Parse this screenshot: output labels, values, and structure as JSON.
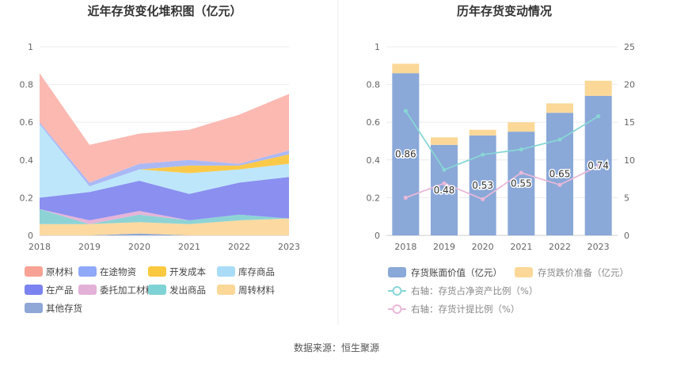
{
  "footer": {
    "source": "数据来源：恒生聚源"
  },
  "chart_data": [
    {
      "type": "area",
      "title": "近年存货变化堆积图（亿元）",
      "x": [
        "2018",
        "2019",
        "2020",
        "2021",
        "2022",
        "2023"
      ],
      "y_ticks": [
        "0",
        "0.2",
        "0.4",
        "0.6",
        "0.8",
        "1"
      ],
      "ylim": [
        0,
        1
      ],
      "grid": true,
      "legend_position": "bottom",
      "series": [
        {
          "name": "其他存货",
          "color": "#8da6d8",
          "values": [
            0,
            0,
            0.01,
            0,
            0,
            0
          ]
        },
        {
          "name": "周转材料",
          "color": "#fbd9a0",
          "values": [
            0.06,
            0.06,
            0.06,
            0.06,
            0.08,
            0.09
          ]
        },
        {
          "name": "发出商品",
          "color": "#8dd3d6",
          "values": [
            0.08,
            0,
            0.04,
            0.02,
            0.03,
            0
          ]
        },
        {
          "name": "委托加工材料",
          "color": "#e6b4d8",
          "values": [
            0,
            0.02,
            0.02,
            0,
            0,
            0
          ]
        },
        {
          "name": "在产品",
          "color": "#8a8ff0",
          "values": [
            0.06,
            0.15,
            0.16,
            0.14,
            0.17,
            0.22
          ]
        },
        {
          "name": "库存商品",
          "color": "#bde6fb",
          "values": [
            0.39,
            0.03,
            0.06,
            0.11,
            0.07,
            0.07
          ]
        },
        {
          "name": "开发成本",
          "color": "#fbc94a",
          "values": [
            0,
            0,
            0,
            0.04,
            0.02,
            0.05
          ]
        },
        {
          "name": "在途物资",
          "color": "#aab9f5",
          "values": [
            0.01,
            0.02,
            0.03,
            0.03,
            0.01,
            0.02
          ]
        },
        {
          "name": "原材料",
          "color": "#fbb9b2",
          "values": [
            0.26,
            0.2,
            0.16,
            0.16,
            0.26,
            0.3
          ]
        }
      ],
      "legend": [
        {
          "name": "原材料",
          "color": "#f7a294"
        },
        {
          "name": "在途物资",
          "color": "#8fa8f7"
        },
        {
          "name": "开发成本",
          "color": "#fbc93f"
        },
        {
          "name": "库存商品",
          "color": "#a9dcf7"
        },
        {
          "name": "在产品",
          "color": "#7b83f0"
        },
        {
          "name": "委托加工材料",
          "color": "#e3b1d8"
        },
        {
          "name": "发出商品",
          "color": "#80d3d4"
        },
        {
          "name": "周转材料",
          "color": "#fbd898"
        },
        {
          "name": "其他存货",
          "color": "#8fa7d6"
        }
      ]
    },
    {
      "type": "bar",
      "title": "历年存货变动情况",
      "categories": [
        "2018",
        "2019",
        "2020",
        "2021",
        "2022",
        "2023"
      ],
      "y_left_ticks": [
        "0",
        "0.2",
        "0.4",
        "0.6",
        "0.8",
        "1"
      ],
      "ylim_left": [
        0,
        1
      ],
      "y_right_ticks": [
        "0",
        "5",
        "10",
        "15",
        "20",
        "25"
      ],
      "ylim_right": [
        0,
        25
      ],
      "grid": true,
      "legend_position": "bottom",
      "series": [
        {
          "name": "存货账面价值（亿元）",
          "kind": "bar",
          "axis": "left",
          "color": "#8aa8d8",
          "values": [
            0.86,
            0.48,
            0.53,
            0.55,
            0.65,
            0.74
          ],
          "value_labels": [
            "0.86",
            "0.48",
            "0.53",
            "0.55",
            "0.65",
            "0.74"
          ]
        },
        {
          "name": "存货跌价准备（亿元）",
          "kind": "bar",
          "axis": "left",
          "color": "#fbd898",
          "values": [
            0.05,
            0.04,
            0.03,
            0.05,
            0.05,
            0.08
          ]
        },
        {
          "name": "右轴：存货占净资产比例（%）",
          "kind": "line",
          "axis": "right",
          "color": "#88d6d6",
          "values": [
            16.5,
            8.7,
            10.7,
            11.4,
            12.7,
            15.8
          ]
        },
        {
          "name": "右轴：存货计提比例（%）",
          "kind": "line",
          "axis": "right",
          "color": "#e9b8d8",
          "values": [
            5.0,
            6.9,
            4.8,
            8.3,
            6.7,
            9.2
          ]
        }
      ]
    }
  ]
}
